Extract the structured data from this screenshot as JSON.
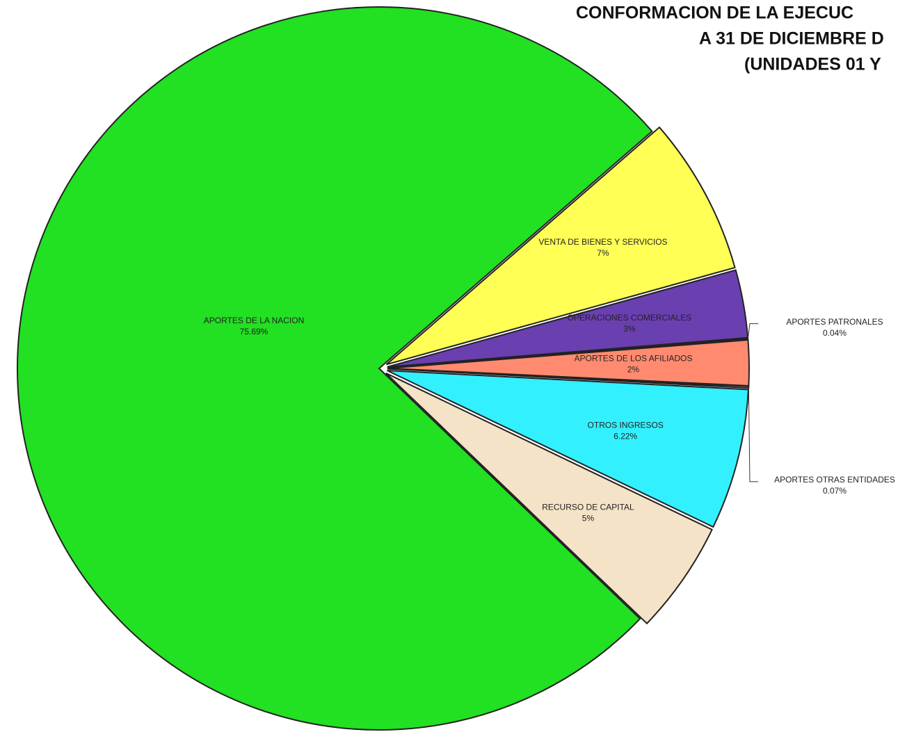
{
  "chart_data": {
    "type": "pie",
    "title": [
      "CONFORMACION DE LA EJECUC",
      "A 31 DE DICIEMBRE D",
      "(UNIDADES 01 Y"
    ],
    "categories": [
      "VENTA DE BIENES Y SERVICIOS",
      "OPERACIONES COMERCIALES",
      "APORTES PATRONALES",
      "APORTES DE LOS AFILIADOS",
      "APORTES OTRAS ENTIDADES",
      "OTROS INGRESOS",
      "RECURSO DE CAPITAL",
      "APORTES DE LA NACION"
    ],
    "values": [
      7,
      3,
      0.04,
      2,
      0.07,
      6.22,
      5,
      75.69
    ],
    "value_labels": [
      "7%",
      "3%",
      "0.04%",
      "2%",
      "0.07%",
      "6.22%",
      "5%",
      "75.69%"
    ],
    "colors": [
      "#ffff55",
      "#6a3fb0",
      "#8a2be2",
      "#ff8a70",
      "#d0d0ff",
      "#33f0ff",
      "#f5e3c8",
      "#22e022"
    ]
  }
}
